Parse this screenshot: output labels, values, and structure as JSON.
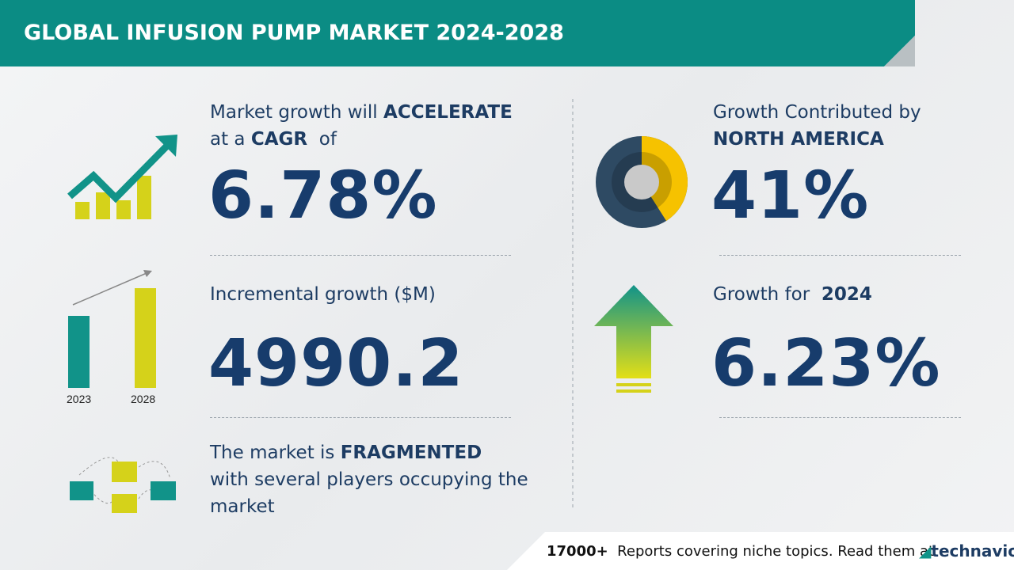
{
  "header": {
    "title": "GLOBAL INFUSION PUMP MARKET 2024-2028"
  },
  "left": {
    "cagr": {
      "text_1": "Market growth will",
      "emphasis_1": "ACCELERATE",
      "text_2": "at a",
      "emphasis_2": "CAGR",
      "text_3": "of",
      "value": "6.78%"
    },
    "incremental": {
      "label": "Incremental growth ($M)",
      "value": "4990.2",
      "years": [
        "2023",
        "2028"
      ]
    },
    "fragmented": {
      "text_1": "The market is",
      "emphasis": "FRAGMENTED",
      "text_2": "with several players occupying the market"
    }
  },
  "right": {
    "contribution": {
      "text": "Growth Contributed by",
      "emphasis": "NORTH AMERICA",
      "value": "41%"
    },
    "year_growth": {
      "text": "Growth for",
      "emphasis": "2024",
      "value": "6.23%"
    }
  },
  "footer": {
    "count": "17000+",
    "text": "Reports covering niche topics. Read them at",
    "brand": "technavio"
  }
}
